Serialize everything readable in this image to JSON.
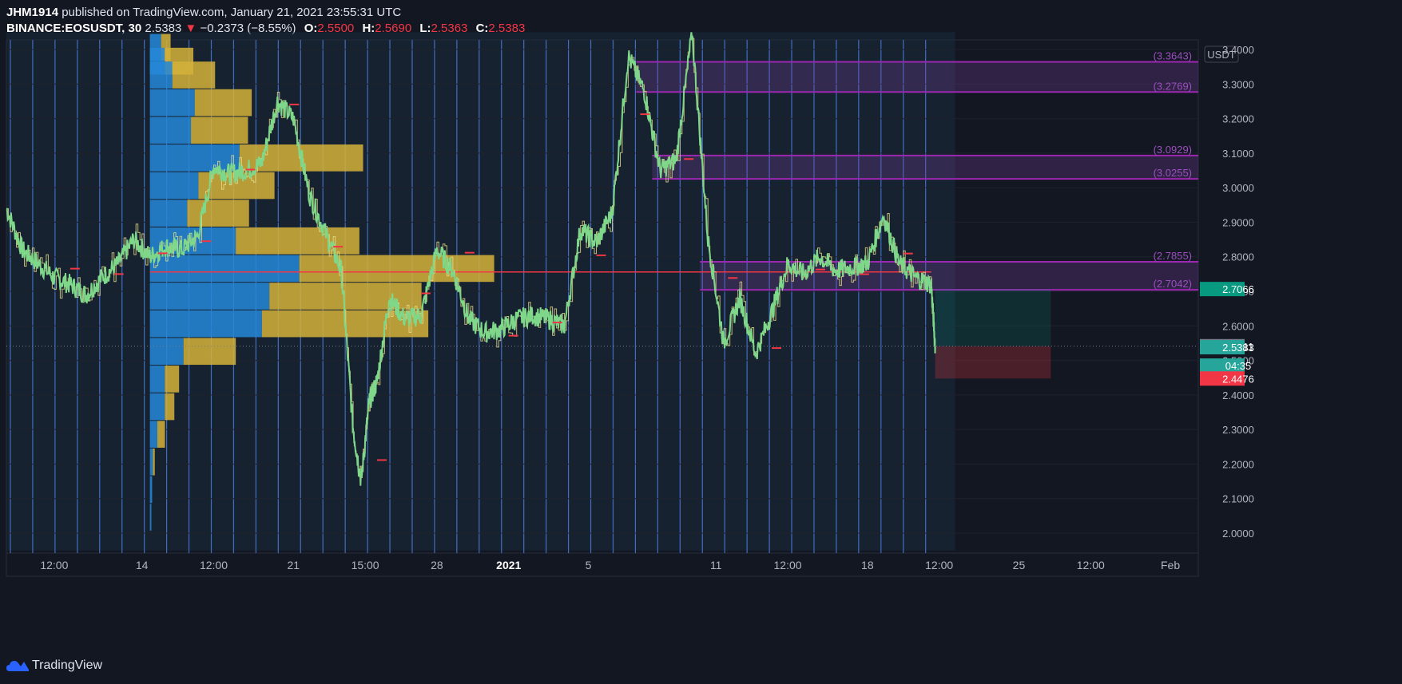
{
  "header": {
    "author": "JHM1914",
    "published_text": "published on TradingView.com, January 21, 2021 23:55:31 UTC",
    "symbol": "BINANCE:EOSUSDT, 30",
    "last": "2.5383",
    "change": "−0.2373 (−8.55%)",
    "open_label": "O:",
    "open": "2.5500",
    "high_label": "H:",
    "high": "2.5690",
    "low_label": "L:",
    "low": "2.5363",
    "close_label": "C:",
    "close": "2.5383"
  },
  "footer": {
    "brand": "TradingView",
    "logo_icon": "tradingview-cloud-icon"
  },
  "chart_data": {
    "type": "line",
    "ylabel": "USDT",
    "ylim": [
      1.95,
      3.45
    ],
    "y_ticks": [
      "3.4000",
      "3.3000",
      "3.2000",
      "3.1000",
      "3.0000",
      "2.9000",
      "2.8000",
      "2.7000",
      "2.6000",
      "2.5000",
      "2.4000",
      "2.3000",
      "2.2000",
      "2.1000",
      "2.0000"
    ],
    "x_ticks": [
      {
        "label": "12:00",
        "t": 0.4
      },
      {
        "label": "14",
        "t": 1.5
      },
      {
        "label": "12:00",
        "t": 2.4
      },
      {
        "label": "21",
        "t": 3.4
      },
      {
        "label": "15:00",
        "t": 4.3
      },
      {
        "label": "28",
        "t": 5.2
      },
      {
        "label": "2021",
        "t": 6.1,
        "bold": true
      },
      {
        "label": "5",
        "t": 7.1
      },
      {
        "label": "11",
        "t": 8.7
      },
      {
        "label": "12:00",
        "t": 9.6
      },
      {
        "label": "18",
        "t": 10.6
      },
      {
        "label": "12:00",
        "t": 11.5
      },
      {
        "label": "25",
        "t": 12.5
      },
      {
        "label": "12:00",
        "t": 13.4
      },
      {
        "label": "Feb",
        "t": 14.4
      }
    ],
    "x_range": [
      -0.2,
      14.75
    ],
    "series": [
      {
        "values": [
          [
            -0.2,
            2.94
          ],
          [
            0.0,
            2.82
          ],
          [
            0.2,
            2.78
          ],
          [
            0.4,
            2.74
          ],
          [
            0.6,
            2.72
          ],
          [
            0.8,
            2.69
          ],
          [
            1.0,
            2.74
          ],
          [
            1.2,
            2.78
          ],
          [
            1.4,
            2.85
          ],
          [
            1.6,
            2.8
          ],
          [
            1.8,
            2.83
          ],
          [
            2.0,
            2.82
          ],
          [
            2.2,
            2.86
          ],
          [
            2.4,
            3.06
          ],
          [
            2.6,
            3.04
          ],
          [
            2.8,
            3.05
          ],
          [
            3.0,
            3.07
          ],
          [
            3.2,
            3.25
          ],
          [
            3.4,
            3.2
          ],
          [
            3.6,
            2.98
          ],
          [
            3.8,
            2.87
          ],
          [
            4.0,
            2.76
          ],
          [
            4.15,
            2.3
          ],
          [
            4.25,
            2.15
          ],
          [
            4.35,
            2.38
          ],
          [
            4.45,
            2.44
          ],
          [
            4.6,
            2.68
          ],
          [
            4.8,
            2.62
          ],
          [
            5.0,
            2.63
          ],
          [
            5.2,
            2.82
          ],
          [
            5.4,
            2.76
          ],
          [
            5.6,
            2.62
          ],
          [
            5.8,
            2.58
          ],
          [
            6.0,
            2.59
          ],
          [
            6.2,
            2.62
          ],
          [
            6.4,
            2.63
          ],
          [
            6.6,
            2.62
          ],
          [
            6.8,
            2.6
          ],
          [
            7.0,
            2.88
          ],
          [
            7.2,
            2.84
          ],
          [
            7.4,
            2.93
          ],
          [
            7.6,
            3.38
          ],
          [
            7.8,
            3.28
          ],
          [
            8.0,
            3.05
          ],
          [
            8.2,
            3.08
          ],
          [
            8.4,
            3.45
          ],
          [
            8.6,
            2.85
          ],
          [
            8.8,
            2.55
          ],
          [
            9.0,
            2.68
          ],
          [
            9.2,
            2.52
          ],
          [
            9.4,
            2.64
          ],
          [
            9.6,
            2.78
          ],
          [
            9.8,
            2.75
          ],
          [
            10.0,
            2.8
          ],
          [
            10.2,
            2.76
          ],
          [
            10.4,
            2.77
          ],
          [
            10.6,
            2.78
          ],
          [
            10.8,
            2.92
          ],
          [
            11.0,
            2.78
          ],
          [
            11.2,
            2.74
          ],
          [
            11.4,
            2.72
          ],
          [
            11.45,
            2.54
          ]
        ]
      }
    ],
    "candles_overlay": "yellow-outline",
    "h_line_red": 2.756,
    "zones": [
      {
        "top": 3.3643,
        "bottom": 3.2769,
        "from_t": 7.7,
        "top_label": "(3.3643)",
        "bottom_label": "(3.2769)"
      },
      {
        "top": 3.0929,
        "bottom": 3.0255,
        "from_t": 7.9,
        "top_label": "(3.0929)",
        "bottom_label": "(3.0255)"
      },
      {
        "top": 2.7855,
        "bottom": 2.7042,
        "from_t": 8.5,
        "top_label": "(2.7855)",
        "bottom_label": "(2.7042)"
      }
    ],
    "position": {
      "entry": 2.5411,
      "target": 2.7066,
      "stop": 2.4476,
      "from_t": 11.45,
      "to_t": 12.9
    },
    "price_badges": [
      {
        "label": "2.7066",
        "value": 2.7066,
        "color": "#089981"
      },
      {
        "label": "2.5411",
        "value": 2.5411,
        "color": "#787b86"
      },
      {
        "label": "2.5383",
        "value": 2.5383,
        "color": "#26a69a"
      },
      {
        "label": "04:35",
        "value": 2.485,
        "color": "#26a69a"
      },
      {
        "label": "2.4476",
        "value": 2.4476,
        "color": "#f23645"
      }
    ],
    "volume_profile": [
      {
        "price": 3.405,
        "buy": 0.15,
        "sell": 0.1
      },
      {
        "price": 3.365,
        "buy": 0.2,
        "sell": 0.3
      },
      {
        "price": 3.325,
        "buy": 0.3,
        "sell": 0.45
      },
      {
        "price": 3.245,
        "buy": 0.6,
        "sell": 0.6
      },
      {
        "price": 3.165,
        "buy": 0.55,
        "sell": 0.6
      },
      {
        "price": 3.085,
        "buy": 1.2,
        "sell": 1.3
      },
      {
        "price": 3.005,
        "buy": 0.65,
        "sell": 0.8
      },
      {
        "price": 2.925,
        "buy": 0.5,
        "sell": 0.65
      },
      {
        "price": 2.845,
        "buy": 1.15,
        "sell": 1.3
      },
      {
        "price": 2.765,
        "buy": 2.0,
        "sell": 2.05
      },
      {
        "price": 2.685,
        "buy": 1.6,
        "sell": 1.6
      },
      {
        "price": 2.605,
        "buy": 1.5,
        "sell": 1.75
      },
      {
        "price": 2.525,
        "buy": 0.45,
        "sell": 0.55
      },
      {
        "price": 2.445,
        "buy": 0.2,
        "sell": 0.15
      },
      {
        "price": 2.365,
        "buy": 0.2,
        "sell": 0.1
      },
      {
        "price": 2.285,
        "buy": 0.1,
        "sell": 0.08
      },
      {
        "price": 2.205,
        "buy": 0.04,
        "sell": 0.02
      },
      {
        "price": 2.125,
        "buy": 0.03,
        "sell": 0.0
      },
      {
        "price": 2.045,
        "buy": 0.02,
        "sell": 0.0
      }
    ]
  }
}
